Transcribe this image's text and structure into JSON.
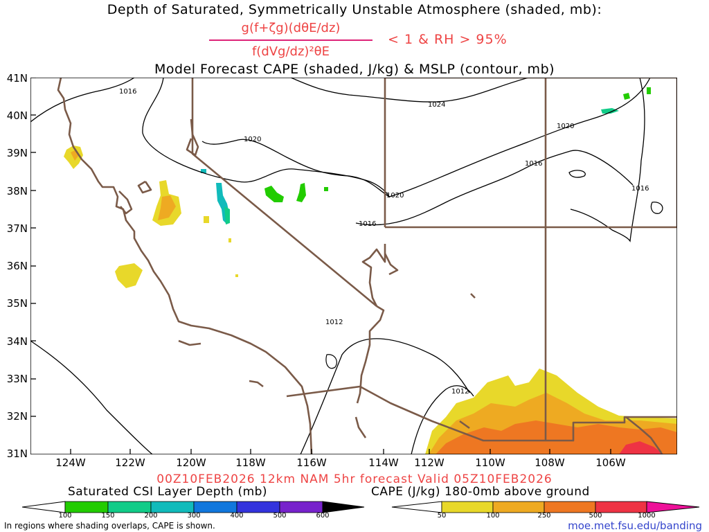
{
  "titles": {
    "line1": "Depth of Saturated, Symmetrically Unstable Atmosphere (shaded, mb):",
    "formula_numerator": "g(f+ζg)(dθE/dz)",
    "formula_denominator": "f(dVg/dz)²θE",
    "condition": "< 1 & RH > 95%",
    "line3": "Model Forecast CAPE (shaded, J/kg) & MSLP (contour, mb)"
  },
  "map": {
    "lat_labels": [
      "41N",
      "40N",
      "39N",
      "38N",
      "37N",
      "36N",
      "35N",
      "34N",
      "33N",
      "32N",
      "31N"
    ],
    "lon_labels": [
      "124W",
      "122W",
      "120W",
      "118W",
      "116W",
      "114W",
      "112W",
      "110W",
      "108W",
      "106W"
    ],
    "contour_labels": [
      "1016",
      "1020",
      "1024",
      "1020",
      "1016",
      "1020",
      "1016",
      "1016",
      "1012",
      "1012"
    ]
  },
  "valid_time": "00Z10FEB2026 12km NAM 5hr forecast Valid 05Z10FEB2026",
  "colorbar_csi": {
    "label": "Saturated CSI Layer Depth (mb)",
    "ticks": [
      "100",
      "150",
      "200",
      "300",
      "400",
      "500",
      "600"
    ],
    "colors": [
      "#22cc00",
      "#11cc88",
      "#11bbbb",
      "#1177dd",
      "#3333dd",
      "#7722cc"
    ]
  },
  "colorbar_cape": {
    "label": "CAPE (J/kg) 180-0mb above ground",
    "ticks": [
      "50",
      "100",
      "250",
      "500",
      "1000"
    ],
    "colors": [
      "#e8d82a",
      "#eeaa22",
      "#ee7722",
      "#ee3344"
    ]
  },
  "footer": {
    "note": "In regions where shading overlaps, CAPE is shown.",
    "credit": "moe.met.fsu.edu/banding"
  }
}
